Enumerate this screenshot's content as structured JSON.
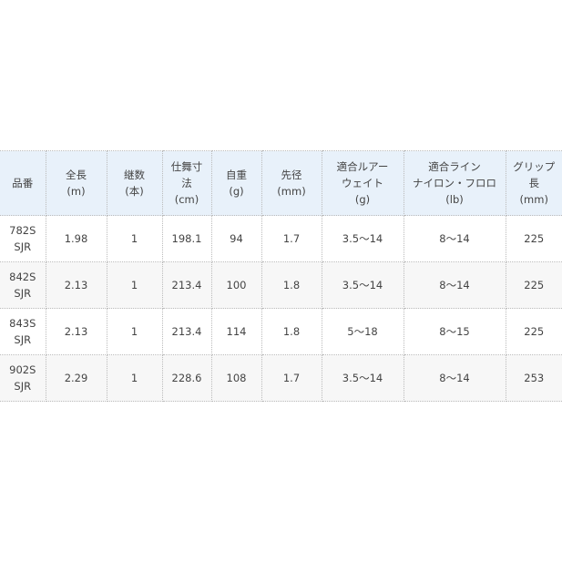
{
  "table": {
    "headers": [
      "品番",
      "全長\n(m)",
      "継数\n(本)",
      "仕舞寸\n法\n(cm)",
      "自重\n(g)",
      "先径\n(mm)",
      "適合ルアー\nウェイト\n(g)",
      "適合ライン\nナイロン・フロロ\n(lb)",
      "グリップ\n長\n(mm)"
    ],
    "rows": [
      [
        "782S\nSJR",
        "1.98",
        "1",
        "198.1",
        "94",
        "1.7",
        "3.5～14",
        "8～14",
        "225"
      ],
      [
        "842S\nSJR",
        "2.13",
        "1",
        "213.4",
        "100",
        "1.8",
        "3.5～14",
        "8～14",
        "225"
      ],
      [
        "843S\nSJR",
        "2.13",
        "1",
        "213.4",
        "114",
        "1.8",
        "5～18",
        "8～15",
        "225"
      ],
      [
        "902S\nSJR",
        "2.29",
        "1",
        "228.6",
        "108",
        "1.7",
        "3.5～14",
        "8～14",
        "253"
      ]
    ]
  },
  "colors": {
    "header_bg": "#e8f1fa",
    "alt_row_bg": "#f7f7f7",
    "border": "#bbbbbb"
  }
}
